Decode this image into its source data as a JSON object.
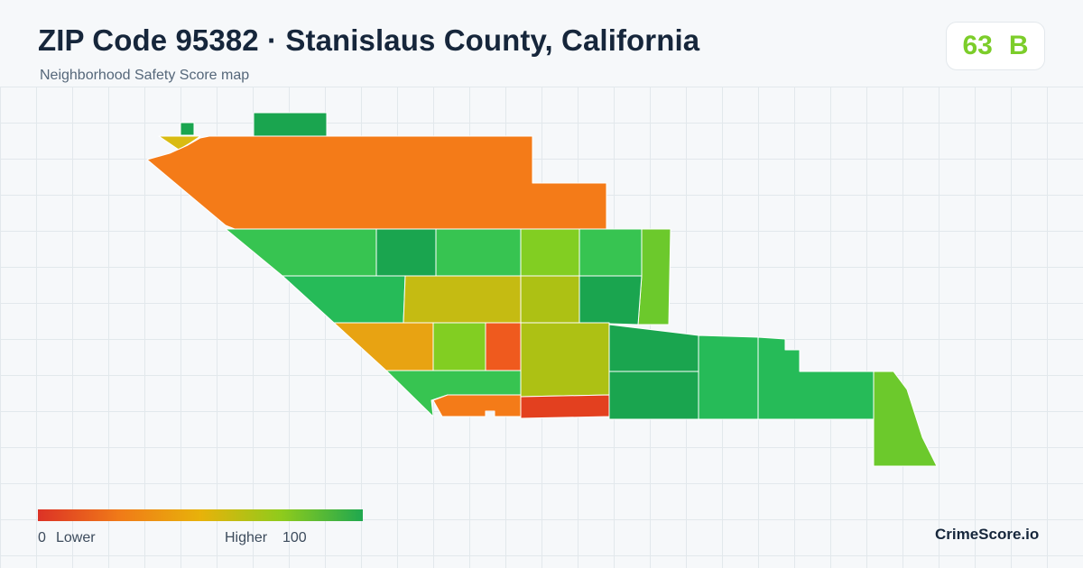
{
  "header": {
    "title": "ZIP Code 95382 · Stanislaus County, California",
    "subtitle": "Neighborhood Safety Score map"
  },
  "score": {
    "value": "63",
    "grade": "B",
    "color": "#7ccd2a"
  },
  "legend": {
    "min_label": "0",
    "low_label": "Lower",
    "high_label": "Higher",
    "max_label": "100",
    "gradient": [
      "#dc3226",
      "#f07a18",
      "#e8b20a",
      "#8fcb1c",
      "#1fa84f"
    ]
  },
  "footer": {
    "brand": "CrimeScore.io"
  },
  "map": {
    "region_colors": {
      "orange": "#f47b18",
      "red_orange": "#ef5a1e",
      "red": "#e3401f",
      "amber": "#e8a312",
      "mustard": "#d9bb12",
      "olive": "#c5bb12",
      "yellow_green": "#adc114",
      "lime": "#82ce22",
      "light_green": "#6cc92c",
      "green": "#37c451",
      "mid_green": "#26bb58",
      "dark_green": "#1aa54f"
    }
  }
}
